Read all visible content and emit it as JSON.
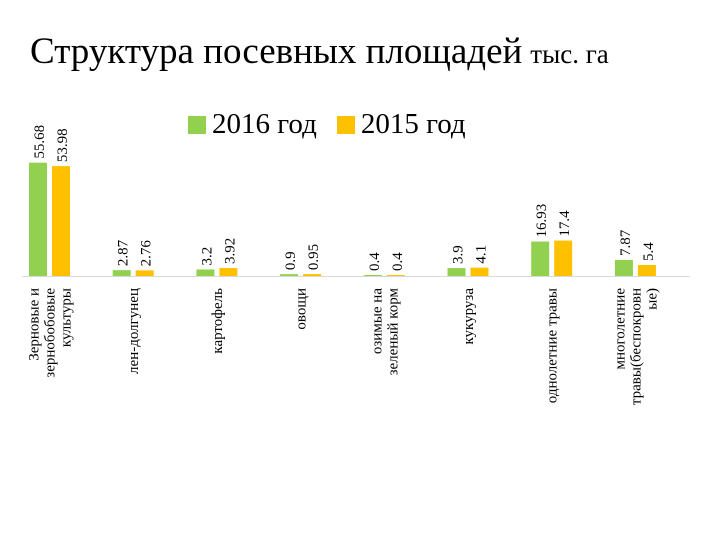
{
  "title": "Структура посевных площадей",
  "unit": "тыс. га",
  "colors": {
    "series2016": "#92D050",
    "series2015": "#FFC000"
  },
  "chart_data": {
    "type": "bar",
    "title": "Структура посевных площадей тыс. га",
    "categories": [
      [
        "Зерновые и",
        "зернобобовые",
        "культуры"
      ],
      [
        "лен-долгунец"
      ],
      [
        "картофель"
      ],
      [
        "овощи"
      ],
      [
        "озимые на",
        "зеленый корм"
      ],
      [
        "кукуруза"
      ],
      [
        "однолетние травы"
      ],
      [
        "многолетние",
        "травы(беспокровн",
        "ые)"
      ]
    ],
    "series": [
      {
        "name": "2016 год",
        "color": "#92D050",
        "values": [
          55.68,
          2.87,
          3.2,
          0.9,
          0.4,
          3.9,
          16.93,
          7.87
        ]
      },
      {
        "name": "2015 год",
        "color": "#FFC000",
        "values": [
          53.98,
          2.76,
          3.92,
          0.95,
          0.4,
          4.1,
          17.4,
          5.4
        ]
      }
    ],
    "ylim": [
      0,
      56
    ],
    "legend_position": "top",
    "grid": false,
    "data_labels": true
  }
}
